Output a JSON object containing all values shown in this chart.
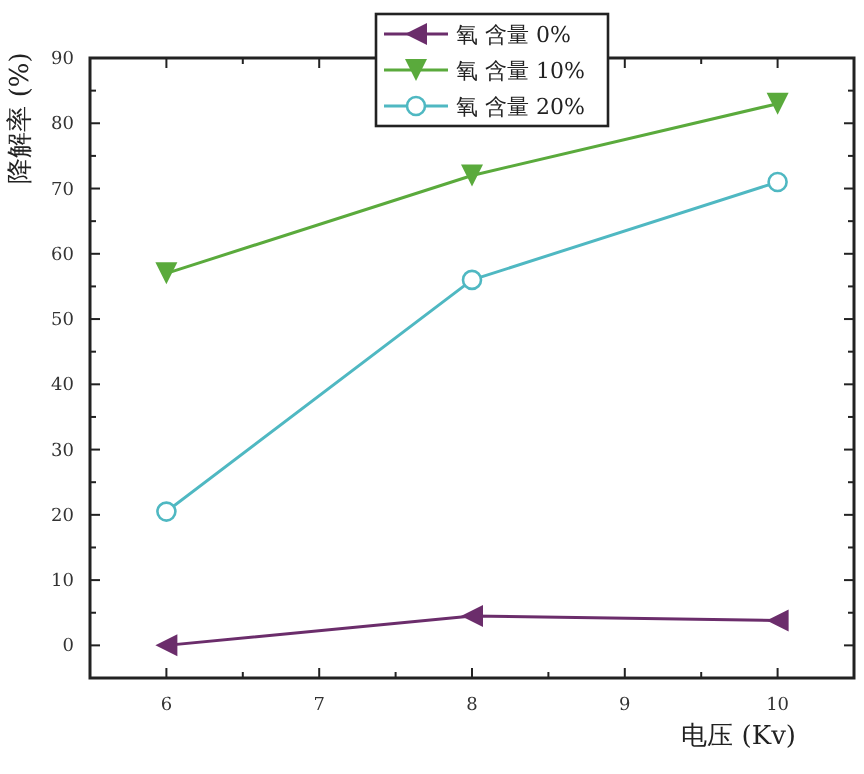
{
  "chart_data": {
    "type": "line",
    "xlabel": "电压 (Kv)",
    "ylabel": "降解率 (%)",
    "x": [
      6,
      8,
      10
    ],
    "series": [
      {
        "name": "氧 含量 0%",
        "color": "#6b2d6b",
        "marker": "triangle-left",
        "values": [
          0,
          4.5,
          3.8
        ]
      },
      {
        "name": "氧 含量 10%",
        "color": "#5aaa3c",
        "marker": "triangle-down",
        "values": [
          57,
          72,
          83
        ]
      },
      {
        "name": "氧 含量 20%",
        "color": "#4fb8c2",
        "marker": "circle-open",
        "values": [
          20.5,
          56,
          71
        ]
      }
    ],
    "xlim": [
      5.5,
      10.5
    ],
    "xticks": [
      6,
      7,
      8,
      9,
      10
    ],
    "ylim": [
      -5,
      90
    ],
    "yticks": [
      0,
      10,
      20,
      30,
      40,
      50,
      60,
      70,
      80,
      90
    ],
    "grid": false,
    "legend": "top"
  }
}
